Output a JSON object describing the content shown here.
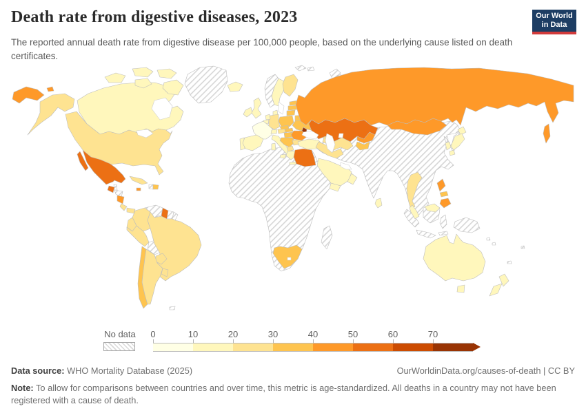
{
  "header": {
    "title": "Death rate from digestive diseases, 2023",
    "subtitle": "The reported annual death rate from digestive disease per 100,000 people, based on the underlying cause listed on death certificates.",
    "logo": {
      "line1": "Our World",
      "line2": "in Data",
      "bg": "#1d3d63",
      "accent": "#d23b3b"
    }
  },
  "legend": {
    "no_data_label": "No data",
    "ticks": [
      "0",
      "10",
      "20",
      "30",
      "40",
      "50",
      "60",
      "70"
    ]
  },
  "footer": {
    "datasource_label": "Data source:",
    "datasource_value": " WHO Mortality Database (2025)",
    "link": "OurWorldinData.org/causes-of-death | CC BY",
    "note_label": "Note:",
    "note_value": " To allow for comparisons between countries and over time, this metric is age-standardized. All deaths in a country may not have been registered with a cause of death."
  },
  "chart_data": {
    "type": "heatmap",
    "subtype": "choropleth-world-map",
    "title": "Death rate from digestive diseases, 2023",
    "unit": "deaths per 100,000 people (age-standardized)",
    "year": "2023",
    "legend_position": "bottom",
    "no_data": {
      "label": "No data",
      "fill": "hatched"
    },
    "bins": [
      {
        "label": "0-10",
        "color": "#ffffe5"
      },
      {
        "label": "10-20",
        "color": "#fff7bc"
      },
      {
        "label": "20-30",
        "color": "#fee391"
      },
      {
        "label": "30-40",
        "color": "#fec44f"
      },
      {
        "label": "40-50",
        "color": "#fe9929"
      },
      {
        "label": "50-60",
        "color": "#ec7014"
      },
      {
        "label": "60-70",
        "color": "#cc4c02"
      },
      {
        "label": "70+",
        "color": "#993404"
      }
    ],
    "countries": {
      "Canada": "10-20",
      "United States": "20-30",
      "Greenland": "No data",
      "Mexico": "50-60",
      "Guatemala": "50-60",
      "Belize": "No data",
      "Honduras": "No data",
      "Nicaragua": "40-50",
      "Costa Rica": "20-30",
      "Panama": "20-30",
      "Cuba": "20-30",
      "Jamaica": "40-50",
      "Haiti": "No data",
      "Dominican Republic": "30-40",
      "Colombia": "20-30",
      "Venezuela": "No data",
      "Guyana": "50-60",
      "Suriname": "No data",
      "Ecuador": "20-30",
      "Peru": "20-30",
      "Brazil": "20-30",
      "Bolivia": "No data",
      "Paraguay": "20-30",
      "Chile": "30-40",
      "Argentina": "20-30",
      "Uruguay": "20-30",
      "Iceland": "10-20",
      "Ireland": "10-20",
      "United Kingdom": "10-20",
      "Norway": "No data",
      "Sweden": "10-20",
      "Finland": "20-30",
      "Denmark": "10-20",
      "Estonia": "30-40",
      "Latvia": "30-40",
      "Lithuania": "30-40",
      "Poland": "30-40",
      "Germany": "20-30",
      "Netherlands": "10-20",
      "Belgium": "10-20",
      "France": "0-10",
      "Spain": "10-20",
      "Portugal": "10-20",
      "Switzerland": "10-20",
      "Austria": "20-30",
      "Czechia": "30-40",
      "Slovakia": "30-40",
      "Hungary": "30-40",
      "Italy": "10-20",
      "Balkans": "30-40",
      "Albania": "20-30",
      "Bulgaria": "20-30",
      "Greece": "10-20",
      "Romania": "40-50",
      "Moldova": "70+",
      "Ukraine": "30-40",
      "Belarus": "30-40",
      "Turkey": "10-20",
      "Georgia": "20-30",
      "Azerbaijan": "20-30",
      "Russia": "40-50",
      "Kazakhstan": "50-60",
      "Mongolia": "40-50",
      "Uzbekistan": "20-30",
      "Turkmenistan": "20-30",
      "Kyrgyzstan": "40-50",
      "Tajikistan": "30-40",
      "China": "No data",
      "India": "No data",
      "Iran": "No data",
      "Saudi Arabia": "10-20",
      "Yemen": "10-20",
      "Oman": "10-20",
      "Egypt": "50-60",
      "South Africa": "30-40",
      "Madagascar": "No data",
      "Japan": "10-20",
      "South Korea": "10-20",
      "North Korea": "No data",
      "Thailand": "20-30",
      "Malaysia": "10-20",
      "Philippines": "40-50",
      "Philippines (Visayas)": "30-40",
      "Sri Lanka": "10-20",
      "Indonesia": "No data",
      "Papua New Guinea": "No data",
      "Australia": "10-20",
      "New Zealand": "10-20"
    }
  }
}
